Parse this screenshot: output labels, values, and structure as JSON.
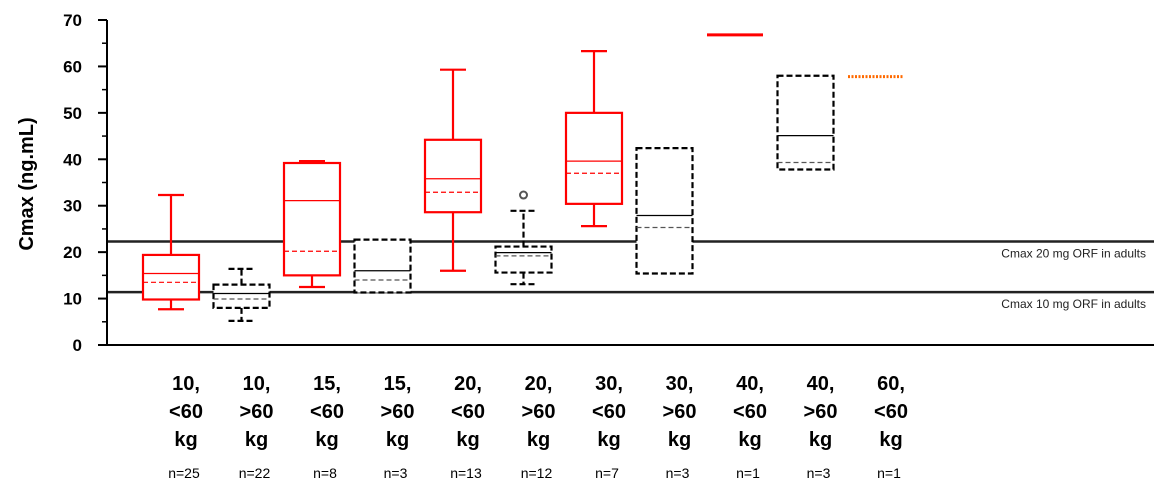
{
  "chart_data": {
    "type": "box",
    "ylabel": "Cmax (ng.mL)",
    "ylim": [
      0,
      70
    ],
    "yticks": [
      "0",
      "10",
      "20",
      "30",
      "40",
      "50",
      "60",
      "70"
    ],
    "grid": false,
    "reference_lines": [
      {
        "value": 22.3,
        "label": "Cmax 20 mg ORF in adults"
      },
      {
        "value": 11.4,
        "label": "Cmax 10 mg ORF in adults"
      }
    ],
    "groups": [
      {
        "label_lines": [
          "10,",
          "<60",
          "kg"
        ],
        "n": "n=25",
        "color": "#ff0000",
        "style": "solid",
        "whisker_low": 7.7,
        "q1": 9.8,
        "median": 15.4,
        "mean": 13.5,
        "q3": 19.4,
        "whisker_high": 32.3,
        "outliers": []
      },
      {
        "label_lines": [
          "10,",
          ">60",
          "kg"
        ],
        "n": "n=22",
        "color": "#000000",
        "style": "dashed",
        "whisker_low": 5.2,
        "q1": 8.0,
        "median": 11.1,
        "mean": 9.9,
        "q3": 13.0,
        "whisker_high": 16.4,
        "outliers": []
      },
      {
        "label_lines": [
          "15,",
          "<60",
          "kg"
        ],
        "n": "n=8",
        "color": "#ff0000",
        "style": "solid",
        "whisker_low": 12.5,
        "q1": 15.0,
        "median": 31.1,
        "mean": 20.2,
        "q3": 39.2,
        "whisker_high": 39.6,
        "outliers": []
      },
      {
        "label_lines": [
          "15,",
          ">60",
          "kg"
        ],
        "n": "n=3",
        "color": "#000000",
        "style": "dashed",
        "whisker_low": 11.3,
        "q1": 11.3,
        "median": 16.0,
        "mean": 14.0,
        "q3": 22.7,
        "whisker_high": 22.7,
        "outliers": []
      },
      {
        "label_lines": [
          "20,",
          "<60",
          "kg"
        ],
        "n": "n=13",
        "color": "#ff0000",
        "style": "solid",
        "whisker_low": 16.0,
        "q1": 28.6,
        "median": 35.8,
        "mean": 32.9,
        "q3": 44.2,
        "whisker_high": 59.3,
        "outliers": []
      },
      {
        "label_lines": [
          "20,",
          ">60",
          "kg"
        ],
        "n": "n=12",
        "color": "#000000",
        "style": "dashed",
        "whisker_low": 13.1,
        "q1": 15.6,
        "median": 19.9,
        "mean": 19.2,
        "q3": 21.2,
        "whisker_high": 28.9,
        "outliers": [
          32.3
        ]
      },
      {
        "label_lines": [
          "30,",
          "<60",
          "kg"
        ],
        "n": "n=7",
        "color": "#ff0000",
        "style": "solid",
        "whisker_low": 25.6,
        "q1": 30.4,
        "median": 39.6,
        "mean": 37.0,
        "q3": 50.0,
        "whisker_high": 63.3,
        "outliers": []
      },
      {
        "label_lines": [
          "30,",
          ">60",
          "kg"
        ],
        "n": "n=3",
        "color": "#000000",
        "style": "dashed",
        "whisker_low": 15.4,
        "q1": 15.4,
        "median": 27.9,
        "mean": 25.3,
        "q3": 42.4,
        "whisker_high": 42.4,
        "outliers": []
      },
      {
        "label_lines": [
          "40,",
          "<60",
          "kg"
        ],
        "n": "n=1",
        "color": "#ff0000",
        "style": "solid",
        "whisker_low": 66.8,
        "q1": 66.8,
        "median": 66.8,
        "mean": 66.8,
        "q3": 66.8,
        "whisker_high": 66.8,
        "outliers": []
      },
      {
        "label_lines": [
          "40,",
          ">60",
          "kg"
        ],
        "n": "n=3",
        "color": "#000000",
        "style": "dashed",
        "whisker_low": 37.8,
        "q1": 37.8,
        "median": 45.1,
        "mean": 39.3,
        "q3": 58.0,
        "whisker_high": 58.0,
        "outliers": []
      },
      {
        "label_lines": [
          "60,",
          "<60",
          "kg"
        ],
        "n": "n=1",
        "color": "#ff6a00",
        "style": "dotted",
        "whisker_low": 57.8,
        "q1": 57.8,
        "median": 57.8,
        "mean": 57.8,
        "q3": 57.8,
        "whisker_high": 57.8,
        "outliers": []
      }
    ]
  }
}
